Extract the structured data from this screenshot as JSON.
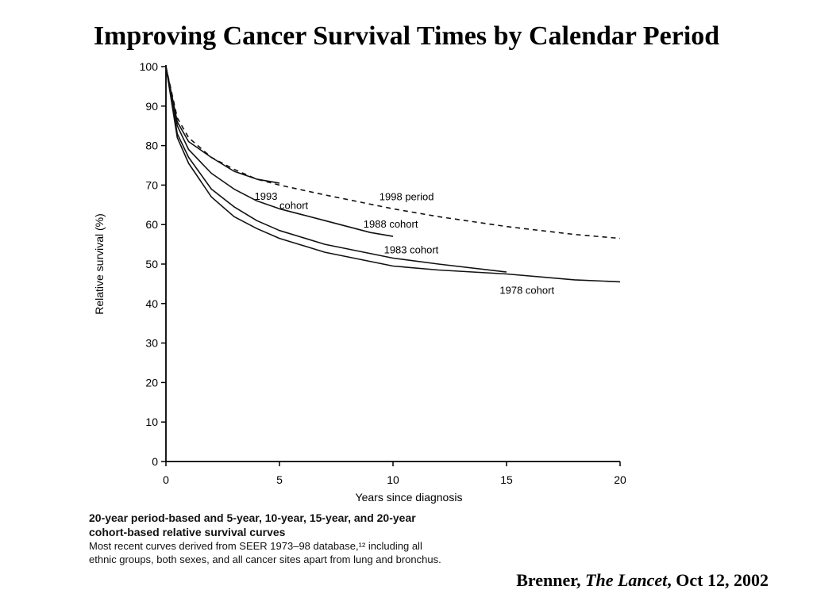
{
  "slide": {
    "title": "Improving Cancer Survival Times by Calendar Period"
  },
  "caption": {
    "heading_line1": "20-year period-based and 5-year, 10-year, 15-year, and 20-year",
    "heading_line2": "cohort-based relative survival curves",
    "body_line1": "Most recent curves derived from SEER 1973–98 database,¹² including all",
    "body_line2": "ethnic groups, both sexes, and all cancer sites apart from lung and bronchus."
  },
  "citation": {
    "author": "Brenner, ",
    "journal": "The Lancet",
    "date": ", Oct 12, 2002"
  },
  "chart_data": {
    "type": "line",
    "xlabel": "Years since diagnosis",
    "ylabel": "Relative survival (%)",
    "xlim": [
      0,
      20
    ],
    "ylim": [
      0,
      100
    ],
    "xticks": [
      0,
      5,
      10,
      15,
      20
    ],
    "yticks": [
      0,
      10,
      20,
      30,
      40,
      50,
      60,
      70,
      80,
      90,
      100
    ],
    "grid": false,
    "legend": "none (curves labelled directly)",
    "series": [
      {
        "name": "1998 period",
        "style": "dashed",
        "label": "1998 period",
        "x": [
          0,
          0.5,
          1,
          2,
          3,
          4,
          5,
          7,
          10,
          12,
          15,
          18,
          20
        ],
        "y": [
          100,
          87,
          82,
          77,
          74,
          71.5,
          70,
          67.5,
          64,
          62,
          59.5,
          57.5,
          56.5
        ]
      },
      {
        "name": "1993 cohort",
        "style": "solid",
        "label_lines": [
          "1993",
          "cohort"
        ],
        "x": [
          0,
          0.5,
          1,
          2,
          3,
          4,
          5
        ],
        "y": [
          100,
          86,
          81,
          77,
          73.5,
          71.5,
          70.5
        ]
      },
      {
        "name": "1988 cohort",
        "style": "solid",
        "label": "1988 cohort",
        "x": [
          0,
          0.5,
          1,
          2,
          3,
          4,
          5,
          7,
          9,
          10
        ],
        "y": [
          100,
          85,
          79,
          73,
          69,
          66,
          64,
          61,
          58,
          57
        ]
      },
      {
        "name": "1983 cohort",
        "style": "solid",
        "label": "1983 cohort",
        "x": [
          0,
          0.5,
          1,
          2,
          3,
          4,
          5,
          7,
          10,
          12,
          15
        ],
        "y": [
          100,
          83,
          77,
          69,
          64.5,
          61,
          58.5,
          55,
          51.5,
          50,
          48
        ]
      },
      {
        "name": "1978 cohort",
        "style": "solid",
        "label": "1978 cohort",
        "x": [
          0,
          0.5,
          1,
          2,
          3,
          4,
          5,
          7,
          10,
          12,
          15,
          18,
          20
        ],
        "y": [
          100,
          82,
          75.5,
          67,
          62,
          59,
          56.5,
          53,
          49.5,
          48.5,
          47.5,
          46,
          45.5
        ]
      }
    ]
  }
}
